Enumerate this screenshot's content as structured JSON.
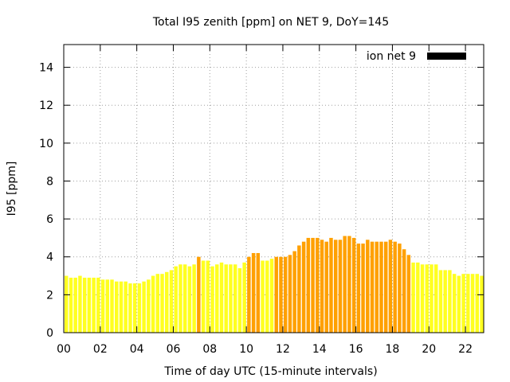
{
  "chart_data": {
    "type": "bar",
    "title": "Total I95 zenith [ppm] on NET 9, DoY=145",
    "xlabel": "Time of day UTC (15-minute intervals)",
    "ylabel": "I95 [ppm]",
    "xlim": [
      0,
      23
    ],
    "ylim": [
      0,
      15.2
    ],
    "x_ticks": [
      "00",
      "02",
      "04",
      "06",
      "08",
      "10",
      "12",
      "14",
      "16",
      "18",
      "20",
      "22"
    ],
    "y_ticks": [
      "0",
      "2",
      "4",
      "6",
      "8",
      "10",
      "12",
      "14"
    ],
    "grid": true,
    "legend": {
      "position": "top-right",
      "entries": [
        {
          "name": "ion net 9",
          "color": "#000000"
        }
      ]
    },
    "colors": {
      "low": "#ffff20",
      "mid": "#f4c430",
      "high": "#ffa000"
    },
    "series": [
      {
        "name": "ion net 9",
        "bin_hours": 0.25,
        "values": [
          3.0,
          2.9,
          2.9,
          3.0,
          2.9,
          2.9,
          2.9,
          2.9,
          2.8,
          2.8,
          2.8,
          2.7,
          2.7,
          2.7,
          2.6,
          2.6,
          2.6,
          2.7,
          2.8,
          3.0,
          3.1,
          3.1,
          3.2,
          3.3,
          3.5,
          3.6,
          3.6,
          3.5,
          3.6,
          4.0,
          3.8,
          3.8,
          3.5,
          3.6,
          3.7,
          3.6,
          3.6,
          3.6,
          3.4,
          3.7,
          4.0,
          4.2,
          4.2,
          3.8,
          3.8,
          3.9,
          4.0,
          4.0,
          4.0,
          4.1,
          4.3,
          4.6,
          4.8,
          5.0,
          5.0,
          5.0,
          4.9,
          4.8,
          5.0,
          4.9,
          4.9,
          5.1,
          5.1,
          5.0,
          4.7,
          4.7,
          4.9,
          4.8,
          4.8,
          4.8,
          4.8,
          4.9,
          4.8,
          4.7,
          4.4,
          4.1,
          3.7,
          3.7,
          3.6,
          3.6,
          3.6,
          3.6,
          3.3,
          3.3,
          3.3,
          3.1,
          3.0,
          3.1,
          3.1,
          3.1,
          3.1,
          3.0
        ]
      }
    ]
  }
}
